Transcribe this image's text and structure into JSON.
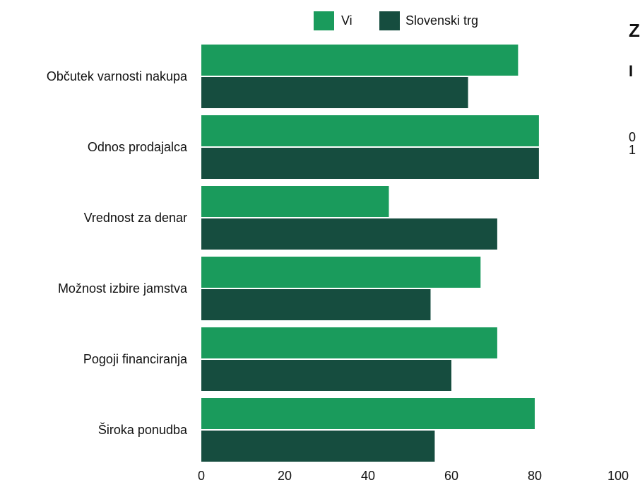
{
  "chart_data": {
    "type": "bar",
    "orientation": "horizontal",
    "categories": [
      "Občutek varnosti nakupa",
      "Odnos prodajalca",
      "Vrednost za denar",
      "Možnost izbire jamstva",
      "Pogoji financiranja",
      "Široka ponudba"
    ],
    "series": [
      {
        "name": "Vi",
        "color": "#1a9b5c",
        "values": [
          76,
          81,
          45,
          67,
          71,
          80
        ]
      },
      {
        "name": "Slovenski trg",
        "color": "#164d3f",
        "values": [
          64,
          81,
          71,
          55,
          60,
          56
        ]
      }
    ],
    "xlim": [
      0,
      100
    ],
    "xticks": [
      0,
      20,
      40,
      60,
      80,
      100
    ],
    "legend_position": "top",
    "grid": false
  },
  "side_panel": {
    "title": "Z",
    "subtitle": "I",
    "value_1": "0",
    "value_2": "1"
  }
}
